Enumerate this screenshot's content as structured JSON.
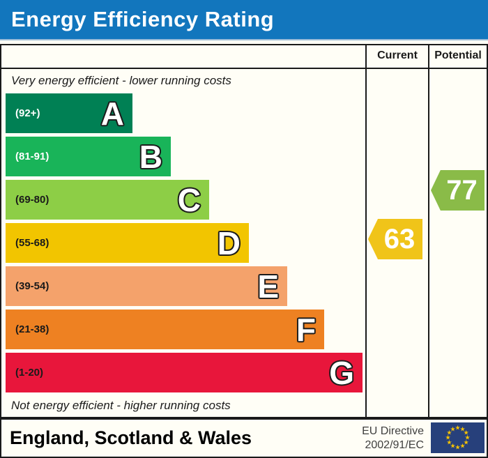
{
  "header": {
    "title": "Energy Efficiency Rating",
    "bg_color": "#1276bd"
  },
  "columns": {
    "current": "Current",
    "potential": "Potential"
  },
  "scale_notes": {
    "top": "Very energy efficient - lower running costs",
    "bottom": "Not energy efficient - higher running costs"
  },
  "bands": [
    {
      "letter": "A",
      "range": "(92+)",
      "color": "#008054",
      "label_color": "#ffffff"
    },
    {
      "letter": "B",
      "range": "(81-91)",
      "color": "#19b459",
      "label_color": "#ffffff"
    },
    {
      "letter": "C",
      "range": "(69-80)",
      "color": "#8dce46",
      "label_color": "#1a1a1a"
    },
    {
      "letter": "D",
      "range": "(55-68)",
      "color": "#f2c500",
      "label_color": "#1a1a1a"
    },
    {
      "letter": "E",
      "range": "(39-54)",
      "color": "#f4a26b",
      "label_color": "#1a1a1a"
    },
    {
      "letter": "F",
      "range": "(21-38)",
      "color": "#ee8122",
      "label_color": "#1a1a1a"
    },
    {
      "letter": "G",
      "range": "(1-20)",
      "color": "#e8163b",
      "label_color": "#1a1a1a"
    }
  ],
  "ratings": {
    "current": {
      "value": "63",
      "band": "D",
      "color": "#f0c419"
    },
    "potential": {
      "value": "77",
      "band": "C",
      "color": "#8abb48"
    }
  },
  "footer": {
    "region": "England, Scotland & Wales",
    "directive_line1": "EU Directive",
    "directive_line2": "2002/91/EC",
    "flag": "eu-flag",
    "flag_color": "#27407b",
    "star_color": "#f8c301"
  },
  "chart_data": {
    "type": "bar",
    "title": "Energy Efficiency Rating",
    "categories": [
      "A",
      "B",
      "C",
      "D",
      "E",
      "F",
      "G"
    ],
    "band_ranges": [
      "92+",
      "81-91",
      "69-80",
      "55-68",
      "39-54",
      "21-38",
      "1-20"
    ],
    "band_colors": [
      "#008054",
      "#19b459",
      "#8dce46",
      "#f2c500",
      "#f4a26b",
      "#ee8122",
      "#e8163b"
    ],
    "current_rating": 63,
    "current_band": "D",
    "potential_rating": 77,
    "potential_band": "C",
    "legend": [
      "Current",
      "Potential"
    ],
    "annotations": [
      "Very energy efficient - lower running costs",
      "Not energy efficient - higher running costs",
      "England, Scotland & Wales",
      "EU Directive 2002/91/EC"
    ]
  }
}
